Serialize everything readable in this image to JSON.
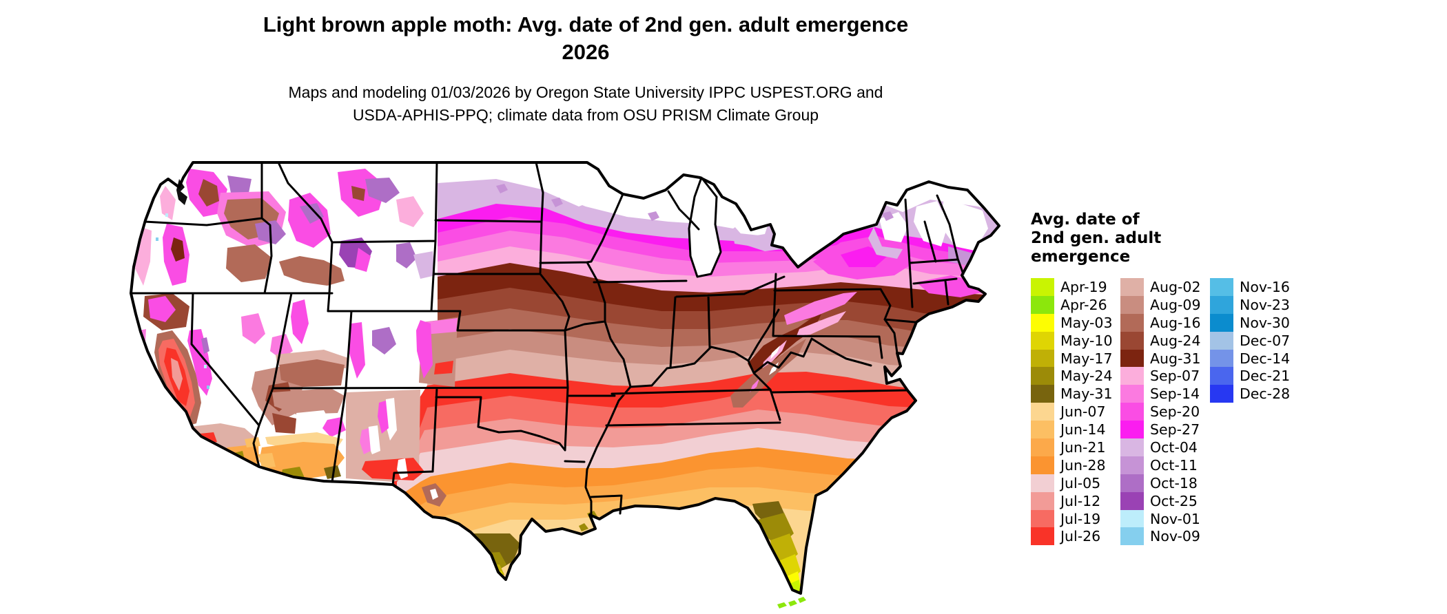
{
  "title": {
    "line1": "Light brown apple moth: Avg. date of 2nd gen. adult emergence",
    "line2": "2026"
  },
  "subtitle": {
    "line1": "Maps and modeling 01/03/2026 by Oregon State University IPPC USPEST.ORG and",
    "line2": "USDA-APHIS-PPQ; climate data from OSU PRISM Climate Group"
  },
  "legend": {
    "title_lines": [
      "Avg. date of",
      "2nd gen. adult",
      "emergence"
    ],
    "columns": [
      15,
      15,
      7
    ],
    "entries": [
      {
        "label": "Apr-19",
        "color": "#c9f402"
      },
      {
        "label": "Apr-26",
        "color": "#8ce70c"
      },
      {
        "label": "May-03",
        "color": "#fdfd02"
      },
      {
        "label": "May-10",
        "color": "#dfd503"
      },
      {
        "label": "May-17",
        "color": "#c0b006"
      },
      {
        "label": "May-24",
        "color": "#9c8b08"
      },
      {
        "label": "May-31",
        "color": "#78640e"
      },
      {
        "label": "Jun-07",
        "color": "#fcd690"
      },
      {
        "label": "Jun-14",
        "color": "#fcbf63"
      },
      {
        "label": "Jun-21",
        "color": "#fca94a"
      },
      {
        "label": "Jun-28",
        "color": "#fb9430"
      },
      {
        "label": "Jul-05",
        "color": "#f2cfd3"
      },
      {
        "label": "Jul-12",
        "color": "#f29b97"
      },
      {
        "label": "Jul-19",
        "color": "#f76b62"
      },
      {
        "label": "Jul-26",
        "color": "#f93328"
      },
      {
        "label": "Aug-02",
        "color": "#dfb0a6"
      },
      {
        "label": "Aug-09",
        "color": "#c98d80"
      },
      {
        "label": "Aug-16",
        "color": "#b26a58"
      },
      {
        "label": "Aug-24",
        "color": "#9a4733"
      },
      {
        "label": "Aug-31",
        "color": "#7c2410"
      },
      {
        "label": "Sep-07",
        "color": "#fcaedc"
      },
      {
        "label": "Sep-14",
        "color": "#fb7ae0"
      },
      {
        "label": "Sep-20",
        "color": "#fa4de4"
      },
      {
        "label": "Sep-27",
        "color": "#fb1df0"
      },
      {
        "label": "Oct-04",
        "color": "#d9b6e3"
      },
      {
        "label": "Oct-11",
        "color": "#c693d6"
      },
      {
        "label": "Oct-18",
        "color": "#ae6ec6"
      },
      {
        "label": "Oct-25",
        "color": "#9a42b4"
      },
      {
        "label": "Nov-01",
        "color": "#bdedfb"
      },
      {
        "label": "Nov-09",
        "color": "#85cfee"
      },
      {
        "label": "Nov-16",
        "color": "#55bee6"
      },
      {
        "label": "Nov-23",
        "color": "#2fa5dc"
      },
      {
        "label": "Nov-30",
        "color": "#0b8cce"
      },
      {
        "label": "Dec-07",
        "color": "#a3c3e6"
      },
      {
        "label": "Dec-14",
        "color": "#7493e8"
      },
      {
        "label": "Dec-21",
        "color": "#4a66ee"
      },
      {
        "label": "Dec-28",
        "color": "#2738f2"
      }
    ]
  },
  "map": {
    "region": "Contiguous United States",
    "border_color": "#000000",
    "background": "#ffffff"
  }
}
